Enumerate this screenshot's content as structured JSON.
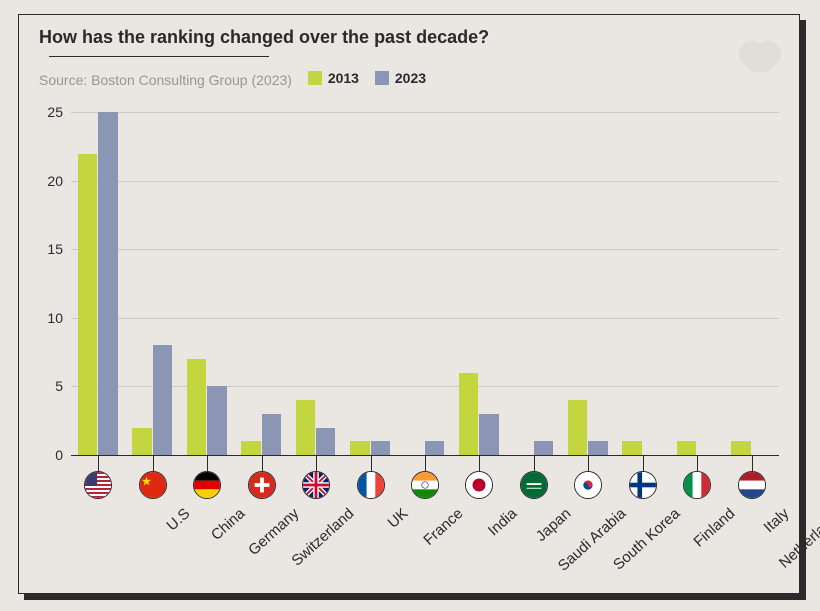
{
  "header": {
    "title": "How has the ranking changed over the past decade?",
    "source": "Source: Boston Consulting Group (2023)"
  },
  "legend": {
    "items": [
      {
        "label": "2013",
        "color": "#c4d63f"
      },
      {
        "label": "2023",
        "color": "#8a96b4"
      }
    ]
  },
  "chart": {
    "type": "bar",
    "ylim": [
      0,
      27
    ],
    "yticks": [
      0,
      5,
      10,
      15,
      20,
      25
    ],
    "axis_color": "#2a2a2a",
    "grid_color": "#b0aba5",
    "background_color": "#eae6e1",
    "bar_gap": 0.02,
    "group_gap": 0.25,
    "series_colors": [
      "#c4d63f",
      "#8a96b4"
    ],
    "categories": [
      {
        "label": "U.S",
        "values": [
          22,
          25
        ],
        "flag": "us"
      },
      {
        "label": "China",
        "values": [
          2,
          8
        ],
        "flag": "cn"
      },
      {
        "label": "Germany",
        "values": [
          7,
          5
        ],
        "flag": "de"
      },
      {
        "label": "Switzerland",
        "values": [
          1,
          3
        ],
        "flag": "ch"
      },
      {
        "label": "UK",
        "values": [
          4,
          2
        ],
        "flag": "gb"
      },
      {
        "label": "France",
        "values": [
          1,
          1
        ],
        "flag": "fr"
      },
      {
        "label": "India",
        "values": [
          0,
          1
        ],
        "flag": "in"
      },
      {
        "label": "Japan",
        "values": [
          6,
          3
        ],
        "flag": "jp"
      },
      {
        "label": "Saudi Arabia",
        "values": [
          0,
          1
        ],
        "flag": "sa"
      },
      {
        "label": "South Korea",
        "values": [
          4,
          1
        ],
        "flag": "kr"
      },
      {
        "label": "Finland",
        "values": [
          1,
          0
        ],
        "flag": "fi"
      },
      {
        "label": "Italy",
        "values": [
          1,
          0
        ],
        "flag": "it"
      },
      {
        "label": "Netherlands",
        "values": [
          1,
          0
        ],
        "flag": "nl"
      }
    ],
    "title_fontsize": 18,
    "label_fontsize": 15,
    "tick_fontsize": 14
  }
}
